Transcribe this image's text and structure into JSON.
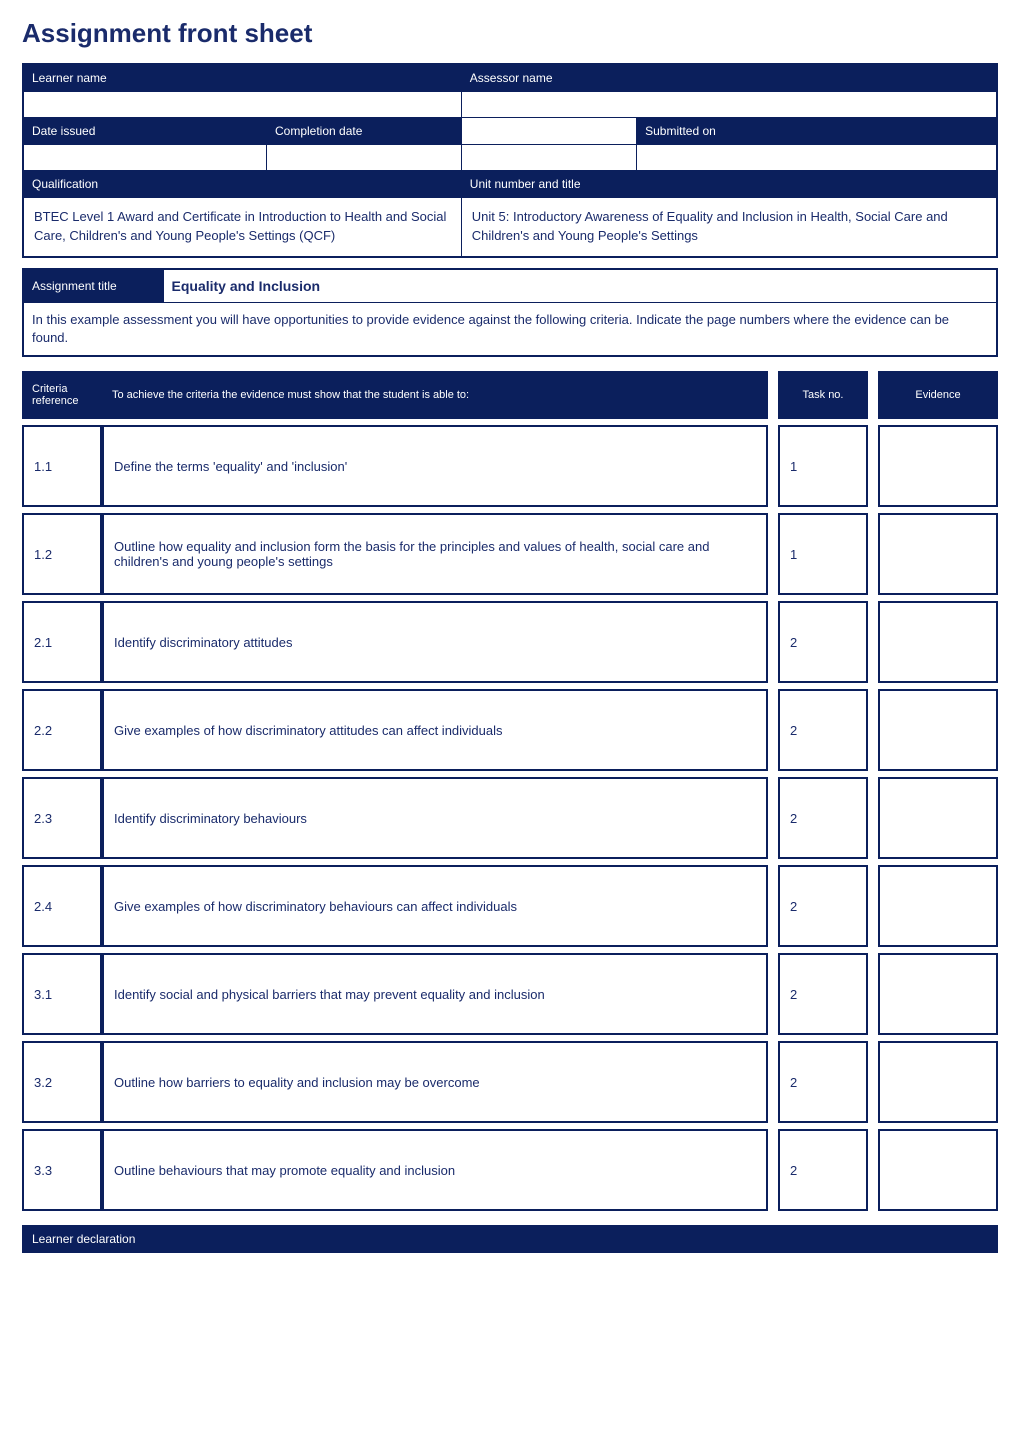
{
  "page_title": "Assignment front sheet",
  "colors": {
    "header_bg": "#0b1f5c",
    "header_text": "#ffffff",
    "body_text": "#1a2b6b",
    "border": "#0b1f5c",
    "page_bg": "#ffffff"
  },
  "top_headers": {
    "learner_name": "Learner name",
    "assessor_name": "Assessor name",
    "date_issued": "Date issued",
    "completion_date": "Completion date",
    "submitted_on": "Submitted on",
    "qualification": "Qualification",
    "unit_number_title": "Unit number and title"
  },
  "top_values": {
    "learner_name": "",
    "assessor_name": "",
    "date_issued": "",
    "completion_date": "",
    "submitted_on": "",
    "qualification": "BTEC Level 1 Award and Certificate in Introduction to Health and Social Care, Children's and Young People's Settings (QCF)",
    "unit_number_title": "Unit 5: Introductory Awareness of Equality and Inclusion in Health, Social Care and Children's and Young People's Settings"
  },
  "assignment": {
    "label": "Assignment title",
    "value": "Equality and Inclusion",
    "intro": "In this example assessment you will have opportunities to provide evidence against the following criteria. Indicate the page numbers where the evidence can be found."
  },
  "criteria_headers": {
    "reference": "Criteria reference",
    "achieve": "To achieve the criteria the evidence must show that the student is able to:",
    "task_no": "Task no.",
    "evidence": "Evidence"
  },
  "criteria": [
    {
      "ref": "1.1",
      "text": "Define the terms 'equality' and 'inclusion'",
      "task": "1",
      "evidence": ""
    },
    {
      "ref": "1.2",
      "text": "Outline how equality and inclusion form the basis for the principles and values of health, social care and children's and young people's settings",
      "task": "1",
      "evidence": ""
    },
    {
      "ref": "2.1",
      "text": "Identify discriminatory attitudes",
      "task": "2",
      "evidence": ""
    },
    {
      "ref": "2.2",
      "text": "Give examples of how discriminatory attitudes can affect individuals",
      "task": "2",
      "evidence": ""
    },
    {
      "ref": "2.3",
      "text": "Identify discriminatory behaviours",
      "task": "2",
      "evidence": ""
    },
    {
      "ref": "2.4",
      "text": "Give examples of how discriminatory behaviours can affect individuals",
      "task": "2",
      "evidence": ""
    },
    {
      "ref": "3.1",
      "text": "Identify social and physical barriers that may prevent equality and inclusion",
      "task": "2",
      "evidence": ""
    },
    {
      "ref": "3.2",
      "text": "Outline how barriers to equality and inclusion may be overcome",
      "task": "2",
      "evidence": ""
    },
    {
      "ref": "3.3",
      "text": "Outline behaviours that may promote equality and inclusion",
      "task": "2",
      "evidence": ""
    }
  ],
  "declaration_label": "Learner declaration"
}
